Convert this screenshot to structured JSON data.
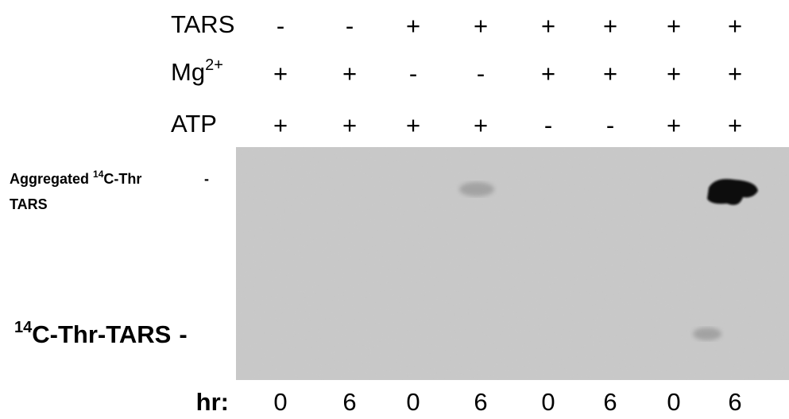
{
  "conditions": [
    {
      "label": {
        "base": "TARS"
      },
      "signs": [
        "-",
        "-",
        "+",
        "+",
        "+",
        "+",
        "+",
        "+"
      ]
    },
    {
      "label": {
        "base": "Mg",
        "sup": "2+"
      },
      "signs": [
        "+",
        "+",
        "-",
        "-",
        "+",
        "+",
        "+",
        "+"
      ]
    },
    {
      "label": {
        "base": "ATP"
      },
      "signs": [
        "+",
        "+",
        "+",
        "+",
        "-",
        "-",
        "+",
        "+"
      ]
    }
  ],
  "bands": [
    {
      "prefix": "Aggregated ",
      "sup": "14",
      "rest": "C-Thr",
      "line2": "TARS",
      "marker": "-"
    },
    {
      "sup": "14",
      "rest": "C-Thr-TARS",
      "marker": "-"
    }
  ],
  "time": {
    "label": "hr:",
    "values": [
      0,
      6,
      0,
      6,
      0,
      6,
      0,
      6
    ]
  }
}
